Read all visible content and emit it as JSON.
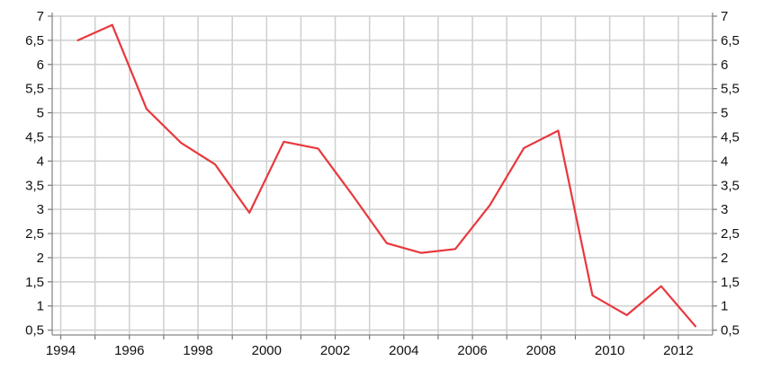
{
  "colors": {
    "series_line": "#e8383d",
    "grid": "#cfcfcf",
    "axis": "#9a9a9a",
    "text": "#111111",
    "background": "#ffffff"
  },
  "chart_data": {
    "type": "line",
    "title": "",
    "xlabel": "",
    "ylabel": "",
    "grid": true,
    "legend": "none",
    "xlim": [
      1993.75,
      2013
    ],
    "ylim": [
      0.4,
      7
    ],
    "x_ticks": [
      1994,
      1996,
      1998,
      2000,
      2002,
      2004,
      2006,
      2008,
      2010,
      2012
    ],
    "x_tick_labels": [
      "1994",
      "1996",
      "1998",
      "2000",
      "2002",
      "2004",
      "2006",
      "2008",
      "2010",
      "2012"
    ],
    "y_ticks": [
      0.5,
      1,
      1.5,
      2,
      2.5,
      3,
      3.5,
      4,
      4.5,
      5,
      5.5,
      6,
      6.5,
      7
    ],
    "y_tick_labels": [
      "0,5",
      "1",
      "1,5",
      "2",
      "2,5",
      "3",
      "3,5",
      "4",
      "4,5",
      "5",
      "5,5",
      "6",
      "6,5",
      "7"
    ],
    "x_grid": [
      1994,
      1995,
      1996,
      1997,
      1998,
      1999,
      2000,
      2001,
      2002,
      2003,
      2004,
      2005,
      2006,
      2007,
      2008,
      2009,
      2010,
      2011,
      2012
    ],
    "series": [
      {
        "x": [
          1994.5,
          1995.5,
          1996.5,
          1997.5,
          1998.5,
          1999.5,
          2000.5,
          2001.5,
          2002.5,
          2003.5,
          2004.5,
          2005.5,
          2006.5,
          2007.5,
          2008.5,
          2009.5,
          2010.5,
          2011.5,
          2012.5
        ],
        "values": [
          6.5,
          6.82,
          5.08,
          4.38,
          3.93,
          2.93,
          4.4,
          4.26,
          3.3,
          2.3,
          2.1,
          2.18,
          3.08,
          4.27,
          4.63,
          1.22,
          0.81,
          1.41,
          0.58
        ]
      }
    ]
  }
}
